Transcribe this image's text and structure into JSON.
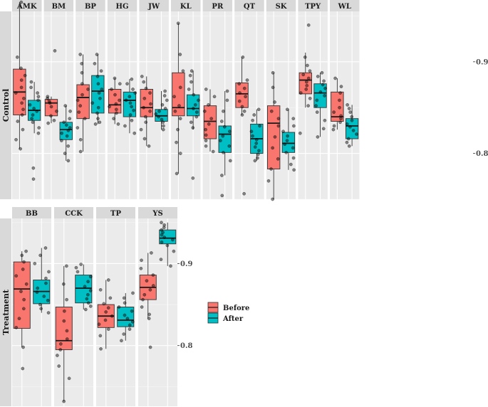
{
  "chart_data": {
    "type": "box",
    "layout": "faceted by group (rows) and site (columns), free y-scales per row",
    "legend": {
      "position": "right",
      "entries": [
        {
          "label": "Before",
          "color": "#F8766D"
        },
        {
          "label": "After",
          "color": "#00BFC4"
        }
      ]
    },
    "rows": [
      {
        "label": "Control",
        "ylim": [
          0.75,
          0.955
        ],
        "y_ticks": [
          0.8,
          0.9
        ],
        "y_tick_labels": [
          "0.8",
          "0.9"
        ],
        "panels": [
          {
            "label": "AMK",
            "before": {
              "min": 0.805,
              "q1": 0.842,
              "median": 0.867,
              "q3": 0.892,
              "max": 0.965,
              "points": [
                0.965,
                0.905,
                0.893,
                0.885,
                0.88,
                0.872,
                0.866,
                0.86,
                0.855,
                0.848,
                0.842,
                0.835,
                0.826,
                0.815,
                0.805
              ]
            },
            "after": {
              "min": 0.822,
              "q1": 0.836,
              "median": 0.847,
              "q3": 0.858,
              "max": 0.878,
              "points": [
                0.878,
                0.872,
                0.866,
                0.862,
                0.858,
                0.853,
                0.849,
                0.846,
                0.842,
                0.838,
                0.834,
                0.828,
                0.822,
                0.784,
                0.772
              ]
            }
          },
          {
            "label": "BM",
            "before": {
              "min": 0.833,
              "q1": 0.841,
              "median": 0.855,
              "q3": 0.859,
              "max": 0.862,
              "points": [
                0.912,
                0.862,
                0.86,
                0.857,
                0.855,
                0.851,
                0.846,
                0.841,
                0.836,
                0.833
              ]
            },
            "after": {
              "min": 0.792,
              "q1": 0.815,
              "median": 0.826,
              "q3": 0.834,
              "max": 0.852,
              "points": [
                0.852,
                0.846,
                0.838,
                0.834,
                0.831,
                0.828,
                0.825,
                0.822,
                0.819,
                0.814,
                0.808,
                0.8,
                0.792
              ]
            }
          },
          {
            "label": "BP",
            "before": {
              "min": 0.802,
              "q1": 0.838,
              "median": 0.861,
              "q3": 0.875,
              "max": 0.908,
              "points": [
                0.908,
                0.898,
                0.888,
                0.876,
                0.87,
                0.864,
                0.858,
                0.852,
                0.845,
                0.838,
                0.828,
                0.815,
                0.802
              ]
            },
            "after": {
              "min": 0.832,
              "q1": 0.844,
              "median": 0.868,
              "q3": 0.885,
              "max": 0.908,
              "points": [
                0.908,
                0.898,
                0.89,
                0.884,
                0.876,
                0.87,
                0.866,
                0.86,
                0.855,
                0.85,
                0.844,
                0.838,
                0.834,
                0.832
              ]
            }
          },
          {
            "label": "HG",
            "before": {
              "min": 0.832,
              "q1": 0.844,
              "median": 0.853,
              "q3": 0.87,
              "max": 0.882,
              "points": [
                0.882,
                0.876,
                0.87,
                0.864,
                0.858,
                0.854,
                0.851,
                0.848,
                0.844,
                0.838,
                0.832
              ]
            },
            "after": {
              "min": 0.822,
              "q1": 0.84,
              "median": 0.858,
              "q3": 0.867,
              "max": 0.881,
              "points": [
                0.881,
                0.876,
                0.87,
                0.866,
                0.862,
                0.858,
                0.855,
                0.851,
                0.847,
                0.842,
                0.836,
                0.83,
                0.822
              ]
            }
          },
          {
            "label": "JW",
            "before": {
              "min": 0.808,
              "q1": 0.84,
              "median": 0.85,
              "q3": 0.87,
              "max": 0.884,
              "points": [
                0.884,
                0.878,
                0.871,
                0.866,
                0.86,
                0.854,
                0.85,
                0.846,
                0.84,
                0.834,
                0.826,
                0.816,
                0.808
              ]
            },
            "after": {
              "min": 0.826,
              "q1": 0.835,
              "median": 0.841,
              "q3": 0.848,
              "max": 0.868,
              "points": [
                0.868,
                0.863,
                0.858,
                0.853,
                0.849,
                0.846,
                0.843,
                0.84,
                0.837,
                0.834,
                0.83,
                0.826
              ]
            }
          },
          {
            "label": "KL",
            "before": {
              "min": 0.778,
              "q1": 0.841,
              "median": 0.85,
              "q3": 0.888,
              "max": 0.942,
              "points": [
                0.942,
                0.908,
                0.89,
                0.872,
                0.862,
                0.852,
                0.846,
                0.838,
                0.826,
                0.812,
                0.8,
                0.778
              ]
            },
            "after": {
              "min": 0.826,
              "q1": 0.841,
              "median": 0.849,
              "q3": 0.864,
              "max": 0.89,
              "points": [
                0.89,
                0.885,
                0.878,
                0.87,
                0.864,
                0.858,
                0.853,
                0.849,
                0.845,
                0.84,
                0.834,
                0.828,
                0.773
              ]
            }
          },
          {
            "label": "PR",
            "before": {
              "min": 0.802,
              "q1": 0.816,
              "median": 0.835,
              "q3": 0.852,
              "max": 0.87,
              "points": [
                0.87,
                0.862,
                0.853,
                0.846,
                0.838,
                0.832,
                0.826,
                0.82,
                0.814,
                0.808,
                0.802
              ]
            },
            "after": {
              "min": 0.776,
              "q1": 0.801,
              "median": 0.821,
              "q3": 0.83,
              "max": 0.868,
              "points": [
                0.868,
                0.858,
                0.846,
                0.835,
                0.829,
                0.824,
                0.819,
                0.814,
                0.808,
                0.801,
                0.792,
                0.776,
                0.754
              ]
            }
          },
          {
            "label": "QT",
            "before": {
              "min": 0.842,
              "q1": 0.85,
              "median": 0.865,
              "q3": 0.877,
              "max": 0.905,
              "points": [
                0.905,
                0.88,
                0.876,
                0.871,
                0.866,
                0.862,
                0.857,
                0.851,
                0.846,
                0.842,
                0.756
              ]
            },
            "after": {
              "min": 0.792,
              "q1": 0.8,
              "median": 0.816,
              "q3": 0.832,
              "max": 0.848,
              "points": [
                0.848,
                0.842,
                0.836,
                0.83,
                0.824,
                0.819,
                0.815,
                0.811,
                0.807,
                0.803,
                0.799,
                0.795,
                0.792
              ]
            }
          },
          {
            "label": "SK",
            "before": {
              "min": 0.75,
              "q1": 0.783,
              "median": 0.833,
              "q3": 0.852,
              "max": 0.888,
              "points": [
                0.888,
                0.872,
                0.856,
                0.846,
                0.838,
                0.83,
                0.818,
                0.806,
                0.794,
                0.783,
                0.77,
                0.75
              ]
            },
            "after": {
              "min": 0.782,
              "q1": 0.801,
              "median": 0.811,
              "q3": 0.823,
              "max": 0.848,
              "points": [
                0.848,
                0.838,
                0.83,
                0.824,
                0.819,
                0.814,
                0.81,
                0.806,
                0.801,
                0.795,
                0.788,
                0.782
              ]
            }
          },
          {
            "label": "TPY",
            "before": {
              "min": 0.85,
              "q1": 0.865,
              "median": 0.88,
              "q3": 0.888,
              "max": 0.91,
              "points": [
                0.94,
                0.905,
                0.896,
                0.89,
                0.886,
                0.882,
                0.878,
                0.874,
                0.87,
                0.866,
                0.86,
                0.852,
                0.822
              ]
            },
            "after": {
              "min": 0.818,
              "q1": 0.85,
              "median": 0.866,
              "q3": 0.876,
              "max": 0.888,
              "points": [
                0.888,
                0.884,
                0.879,
                0.875,
                0.871,
                0.867,
                0.863,
                0.858,
                0.852,
                0.845,
                0.836,
                0.827,
                0.818
              ]
            }
          },
          {
            "label": "WL",
            "before": {
              "min": 0.826,
              "q1": 0.835,
              "median": 0.84,
              "q3": 0.867,
              "max": 0.882,
              "points": [
                0.882,
                0.873,
                0.866,
                0.858,
                0.85,
                0.845,
                0.841,
                0.838,
                0.834,
                0.83,
                0.826
              ]
            },
            "after": {
              "min": 0.808,
              "q1": 0.816,
              "median": 0.83,
              "q3": 0.838,
              "max": 0.853,
              "points": [
                0.853,
                0.849,
                0.845,
                0.84,
                0.836,
                0.832,
                0.829,
                0.825,
                0.821,
                0.816,
                0.812,
                0.808
              ]
            }
          }
        ]
      },
      {
        "label": "Treatment",
        "ylim": [
          0.726,
          0.955
        ],
        "y_ticks": [
          0.8,
          0.9
        ],
        "y_tick_labels": [
          "0.8",
          "0.9"
        ],
        "panels": [
          {
            "label": "BB",
            "before": {
              "min": 0.798,
              "q1": 0.821,
              "median": 0.869,
              "q3": 0.902,
              "max": 0.915,
              "points": [
                0.915,
                0.91,
                0.902,
                0.893,
                0.885,
                0.875,
                0.866,
                0.856,
                0.845,
                0.833,
                0.822,
                0.798,
                0.772
              ]
            },
            "after": {
              "min": 0.84,
              "q1": 0.851,
              "median": 0.866,
              "q3": 0.88,
              "max": 0.919,
              "points": [
                0.919,
                0.91,
                0.9,
                0.89,
                0.882,
                0.876,
                0.87,
                0.865,
                0.86,
                0.855,
                0.85,
                0.845,
                0.84
              ]
            }
          },
          {
            "label": "CCK",
            "before": {
              "min": 0.732,
              "q1": 0.795,
              "median": 0.806,
              "q3": 0.847,
              "max": 0.897,
              "points": [
                0.897,
                0.875,
                0.856,
                0.842,
                0.83,
                0.818,
                0.808,
                0.802,
                0.795,
                0.788,
                0.775,
                0.76,
                0.732
              ]
            },
            "after": {
              "min": 0.844,
              "q1": 0.852,
              "median": 0.87,
              "q3": 0.886,
              "max": 0.899,
              "points": [
                0.899,
                0.895,
                0.89,
                0.884,
                0.878,
                0.872,
                0.867,
                0.862,
                0.857,
                0.852,
                0.848,
                0.844
              ]
            }
          },
          {
            "label": "TP",
            "before": {
              "min": 0.796,
              "q1": 0.822,
              "median": 0.836,
              "q3": 0.85,
              "max": 0.88,
              "points": [
                0.88,
                0.868,
                0.858,
                0.851,
                0.846,
                0.841,
                0.836,
                0.831,
                0.826,
                0.82,
                0.812,
                0.796
              ]
            },
            "after": {
              "min": 0.806,
              "q1": 0.823,
              "median": 0.831,
              "q3": 0.847,
              "max": 0.864,
              "points": [
                0.864,
                0.858,
                0.852,
                0.847,
                0.842,
                0.837,
                0.833,
                0.829,
                0.825,
                0.82,
                0.814,
                0.806
              ]
            }
          },
          {
            "label": "YS",
            "before": {
              "min": 0.833,
              "q1": 0.856,
              "median": 0.871,
              "q3": 0.886,
              "max": 0.913,
              "points": [
                0.913,
                0.904,
                0.894,
                0.886,
                0.879,
                0.873,
                0.868,
                0.862,
                0.856,
                0.847,
                0.838,
                0.833,
                0.798
              ]
            },
            "after": {
              "min": 0.897,
              "q1": 0.924,
              "median": 0.931,
              "q3": 0.941,
              "max": 0.95,
              "points": [
                0.95,
                0.947,
                0.944,
                0.941,
                0.938,
                0.935,
                0.932,
                0.929,
                0.926,
                0.922,
                0.915,
                0.905,
                0.897
              ]
            }
          }
        ]
      }
    ]
  }
}
